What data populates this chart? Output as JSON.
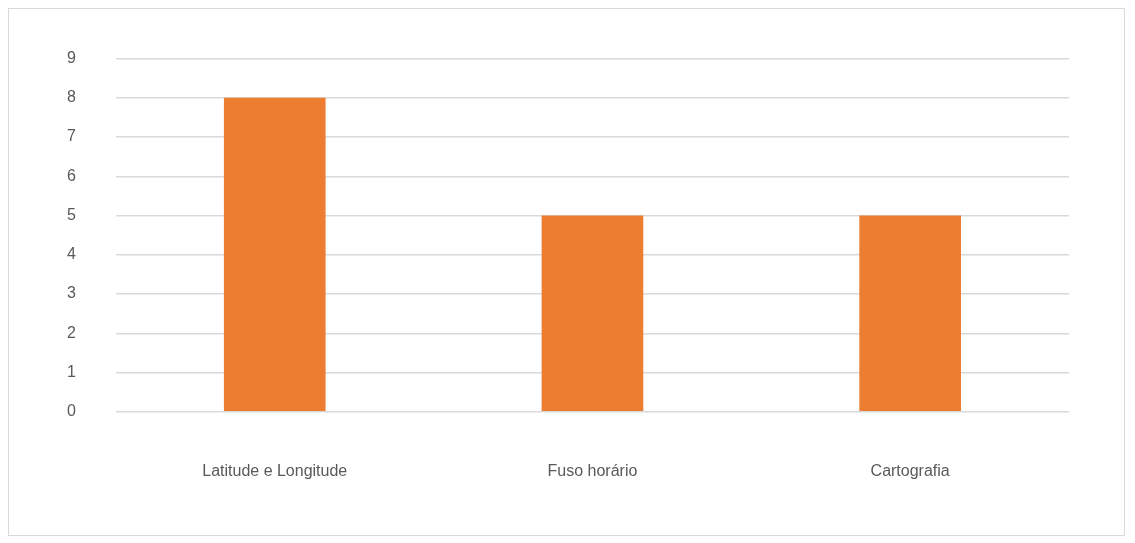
{
  "chart_data": {
    "type": "bar",
    "categories": [
      "Latitude e Longitude",
      "Fuso horário",
      "Cartografia"
    ],
    "values": [
      8,
      5,
      5
    ],
    "color": "#ed7d31",
    "ylim": [
      0,
      9
    ],
    "yticks": [
      0,
      1,
      2,
      3,
      4,
      5,
      6,
      7,
      8,
      9
    ],
    "grid": "y"
  }
}
